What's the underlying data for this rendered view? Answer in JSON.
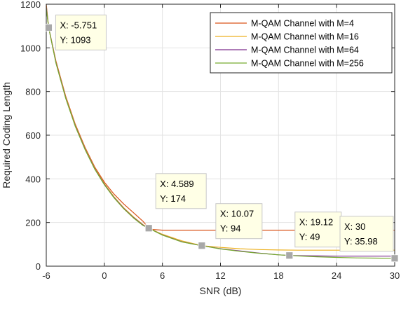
{
  "chart_data": {
    "type": "line",
    "title": "",
    "xlabel": "SNR (dB)",
    "ylabel": "Required Coding Length",
    "xlim": [
      -6,
      30
    ],
    "ylim": [
      0,
      1200
    ],
    "xticks": [
      -6,
      0,
      6,
      12,
      18,
      24,
      30
    ],
    "yticks": [
      0,
      200,
      400,
      600,
      800,
      1000,
      1200
    ],
    "grid": true,
    "legend_position": "top-right",
    "series": [
      {
        "name": "M-QAM Channel with M=4",
        "color": "#d95319",
        "x": [
          -6,
          -5.751,
          -5,
          -4,
          -3,
          -2,
          -1,
          0,
          1,
          2,
          3,
          4,
          4.589,
          5,
          6,
          7,
          8,
          9,
          10,
          12,
          14,
          16,
          18,
          20,
          22,
          24,
          26,
          28,
          30
        ],
        "y": [
          1200,
          1093,
          940,
          780,
          650,
          545,
          455,
          385,
          330,
          285,
          245,
          205,
          174,
          168,
          165,
          165,
          165,
          165,
          165,
          165,
          165,
          165,
          165,
          165,
          165,
          165,
          165,
          165,
          165
        ]
      },
      {
        "name": "M-QAM Channel with M=16",
        "color": "#edb120",
        "x": [
          -6,
          -5.751,
          -5,
          -4,
          -3,
          -2,
          -1,
          0,
          1,
          2,
          3,
          4,
          4.589,
          6,
          8,
          10,
          10.07,
          12,
          14,
          16,
          18,
          20,
          22,
          24,
          26,
          28,
          30
        ],
        "y": [
          1190,
          1093,
          935,
          775,
          645,
          540,
          450,
          378,
          318,
          268,
          226,
          190,
          174,
          146,
          116,
          95,
          94,
          86,
          80,
          76,
          74,
          73,
          73,
          73,
          73,
          73,
          73
        ]
      },
      {
        "name": "M-QAM Channel with M=64",
        "color": "#7e2f8e",
        "x": [
          -6,
          -5.751,
          -5,
          -4,
          -3,
          -2,
          -1,
          0,
          1,
          2,
          3,
          4,
          4.589,
          6,
          8,
          10,
          10.07,
          12,
          14,
          16,
          18,
          19.12,
          20,
          22,
          24,
          26,
          28,
          30
        ],
        "y": [
          1185,
          1093,
          932,
          772,
          642,
          537,
          447,
          375,
          315,
          265,
          223,
          188,
          174,
          143,
          112,
          94,
          94,
          80,
          70,
          60,
          52,
          49,
          48,
          47,
          46,
          46,
          46,
          46
        ]
      },
      {
        "name": "M-QAM Channel with M=256",
        "color": "#77ac30",
        "x": [
          -6,
          -5.751,
          -5,
          -4,
          -3,
          -2,
          -1,
          0,
          1,
          2,
          3,
          4,
          4.589,
          6,
          8,
          10,
          10.07,
          12,
          14,
          16,
          18,
          19.12,
          20,
          22,
          24,
          26,
          28,
          30
        ],
        "y": [
          1180,
          1093,
          930,
          770,
          640,
          535,
          445,
          373,
          313,
          263,
          221,
          186,
          174,
          142,
          111,
          94,
          94,
          79,
          68,
          59,
          52,
          49,
          47,
          43,
          40,
          38,
          37,
          35.98
        ]
      }
    ],
    "datatips": [
      {
        "x": -5.751,
        "y": 1093,
        "x_text": "X: -5.751",
        "y_text": "Y: 1093"
      },
      {
        "x": 4.589,
        "y": 174,
        "x_text": "X: 4.589",
        "y_text": "Y: 174"
      },
      {
        "x": 10.07,
        "y": 94,
        "x_text": "X: 10.07",
        "y_text": "Y: 94"
      },
      {
        "x": 19.12,
        "y": 49,
        "x_text": "X: 19.12",
        "y_text": "Y: 49"
      },
      {
        "x": 30,
        "y": 35.98,
        "x_text": "X: 30",
        "y_text": "Y: 35.98"
      }
    ]
  }
}
